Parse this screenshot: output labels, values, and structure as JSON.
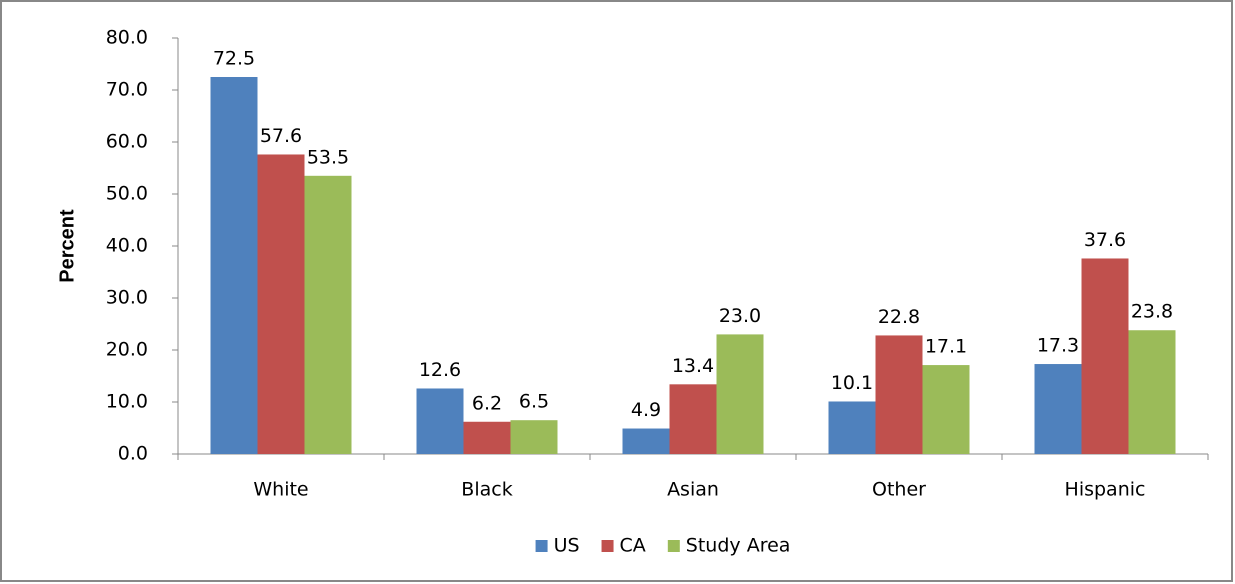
{
  "chart_data": {
    "type": "bar",
    "y_label": "Percent",
    "categories": [
      "White",
      "Black",
      "Asian",
      "Other",
      "Hispanic"
    ],
    "series": [
      {
        "name": "US",
        "color": "#4f81bd",
        "values": [
          72.5,
          12.6,
          4.9,
          10.1,
          17.3
        ],
        "value_labels": [
          "72.5",
          "12.6",
          "4.9",
          "10.1",
          "17.3"
        ]
      },
      {
        "name": "CA",
        "color": "#c0504d",
        "values": [
          57.6,
          6.2,
          13.4,
          22.8,
          37.6
        ],
        "value_labels": [
          "57.6",
          "6.2",
          "13.4",
          "22.8",
          "37.6"
        ]
      },
      {
        "name": "Study Area",
        "color": "#9bbb59",
        "values": [
          53.5,
          6.5,
          23.0,
          17.1,
          23.8
        ],
        "value_labels": [
          "53.5",
          "6.5",
          "23.0",
          "17.1",
          "23.8"
        ]
      }
    ],
    "ylim": [
      0,
      80
    ],
    "yticks": [
      {
        "value": 0,
        "label": "0.0"
      },
      {
        "value": 10,
        "label": "10.0"
      },
      {
        "value": 20,
        "label": "20.0"
      },
      {
        "value": 30,
        "label": "30.0"
      },
      {
        "value": 40,
        "label": "40.0"
      },
      {
        "value": 50,
        "label": "50.0"
      },
      {
        "value": 60,
        "label": "60.0"
      },
      {
        "value": 70,
        "label": "70.0"
      },
      {
        "value": 80,
        "label": "80.0"
      }
    ],
    "grid": false,
    "legend": "bottom"
  }
}
